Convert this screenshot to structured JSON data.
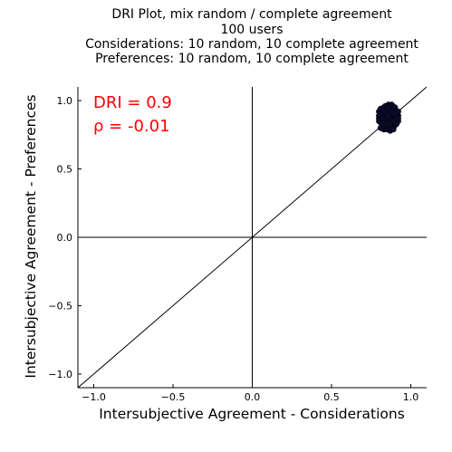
{
  "chart_data": {
    "type": "scatter",
    "title_lines": [
      "DRI Plot, mix random / complete agreement",
      "100 users",
      "Considerations: 10 random, 10 complete agreement",
      "Preferences: 10 random, 10 complete agreement"
    ],
    "xlabel": "Intersubjective Agreement - Considerations",
    "ylabel": "Intersubjective Agreement - Preferences",
    "xlim": [
      -1.1,
      1.1
    ],
    "ylim": [
      -1.1,
      1.1
    ],
    "xticks": [
      -1.0,
      -0.5,
      0.0,
      0.5,
      1.0
    ],
    "xtick_labels": [
      "−1.0",
      "−0.5",
      "0.0",
      "0.5",
      "1.0"
    ],
    "yticks": [
      -1.0,
      -0.5,
      0.0,
      0.5,
      1.0
    ],
    "ytick_labels": [
      "−1.0",
      "−0.5",
      "0.0",
      "0.5",
      "1.0"
    ],
    "grid": false,
    "reference_lines": [
      "x=0",
      "y=0",
      "y=x"
    ],
    "annotations": [
      {
        "text": "DRI = 0.9",
        "color": "#ff0000"
      },
      {
        "text": "ρ = -0.01",
        "color": "#ff0000"
      }
    ],
    "point_color": "#0a0a28",
    "series": [
      {
        "cluster_center": [
          0.86,
          0.88
        ],
        "cluster_spread": [
          0.05,
          0.05
        ],
        "points": [
          [
            0.81,
            0.84
          ],
          [
            0.83,
            0.86
          ],
          [
            0.85,
            0.88
          ],
          [
            0.87,
            0.9
          ],
          [
            0.89,
            0.92
          ],
          [
            0.82,
            0.91
          ],
          [
            0.84,
            0.93
          ],
          [
            0.86,
            0.95
          ],
          [
            0.88,
            0.94
          ],
          [
            0.9,
            0.88
          ],
          [
            0.8,
            0.87
          ],
          [
            0.82,
            0.89
          ],
          [
            0.84,
            0.85
          ],
          [
            0.86,
            0.83
          ],
          [
            0.88,
            0.82
          ],
          [
            0.9,
            0.84
          ],
          [
            0.91,
            0.86
          ],
          [
            0.83,
            0.82
          ],
          [
            0.85,
            0.81
          ],
          [
            0.87,
            0.8
          ],
          [
            0.89,
            0.81
          ],
          [
            0.81,
            0.88
          ],
          [
            0.83,
            0.9
          ],
          [
            0.85,
            0.92
          ],
          [
            0.87,
            0.93
          ],
          [
            0.89,
            0.95
          ],
          [
            0.91,
            0.91
          ],
          [
            0.8,
            0.92
          ],
          [
            0.82,
            0.94
          ],
          [
            0.84,
            0.96
          ],
          [
            0.86,
            0.97
          ],
          [
            0.88,
            0.96
          ],
          [
            0.9,
            0.93
          ],
          [
            0.92,
            0.89
          ],
          [
            0.92,
            0.85
          ],
          [
            0.81,
            0.8
          ],
          [
            0.83,
            0.79
          ],
          [
            0.85,
            0.79
          ],
          [
            0.87,
            0.78
          ],
          [
            0.89,
            0.79
          ],
          [
            0.84,
            0.87
          ],
          [
            0.86,
            0.86
          ],
          [
            0.88,
            0.87
          ],
          [
            0.85,
            0.84
          ],
          [
            0.87,
            0.85
          ],
          [
            0.83,
            0.88
          ],
          [
            0.86,
            0.9
          ],
          [
            0.88,
            0.91
          ],
          [
            0.84,
            0.9
          ],
          [
            0.86,
            0.92
          ],
          [
            0.82,
            0.85
          ],
          [
            0.85,
            0.86
          ],
          [
            0.87,
            0.88
          ],
          [
            0.89,
            0.87
          ],
          [
            0.9,
            0.9
          ],
          [
            0.81,
            0.9
          ],
          [
            0.83,
            0.93
          ],
          [
            0.85,
            0.94
          ],
          [
            0.87,
            0.96
          ],
          [
            0.89,
            0.93
          ],
          [
            0.91,
            0.88
          ],
          [
            0.9,
            0.82
          ],
          [
            0.88,
            0.84
          ],
          [
            0.86,
            0.82
          ],
          [
            0.84,
            0.82
          ],
          [
            0.82,
            0.83
          ],
          [
            0.8,
            0.85
          ],
          [
            0.8,
            0.89
          ],
          [
            0.81,
            0.94
          ],
          [
            0.83,
            0.95
          ],
          [
            0.85,
            0.96
          ],
          [
            0.88,
            0.97
          ],
          [
            0.9,
            0.95
          ],
          [
            0.92,
            0.92
          ],
          [
            0.92,
            0.87
          ],
          [
            0.91,
            0.83
          ],
          [
            0.89,
            0.8
          ],
          [
            0.86,
            0.8
          ],
          [
            0.84,
            0.8
          ],
          [
            0.82,
            0.81
          ],
          [
            0.85,
            0.9
          ],
          [
            0.87,
            0.91
          ],
          [
            0.84,
            0.88
          ],
          [
            0.86,
            0.88
          ],
          [
            0.88,
            0.89
          ],
          [
            0.83,
            0.86
          ],
          [
            0.86,
            0.85
          ],
          [
            0.88,
            0.86
          ],
          [
            0.85,
            0.83
          ],
          [
            0.87,
            0.83
          ],
          [
            0.84,
            0.92
          ],
          [
            0.86,
            0.94
          ],
          [
            0.88,
            0.92
          ],
          [
            0.9,
            0.91
          ],
          [
            0.82,
            0.87
          ],
          [
            0.89,
            0.85
          ],
          [
            0.87,
            0.87
          ],
          [
            0.85,
            0.87
          ],
          [
            0.83,
            0.84
          ],
          [
            0.86,
            0.89
          ]
        ]
      }
    ]
  }
}
